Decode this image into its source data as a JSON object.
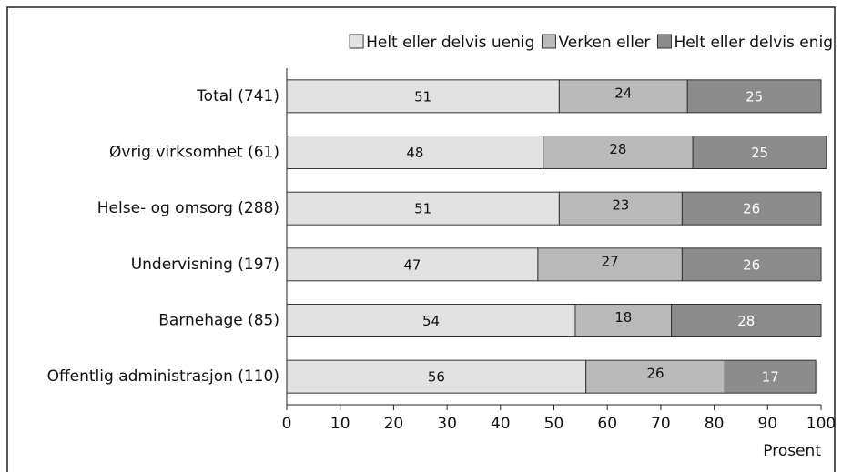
{
  "chart_data": {
    "type": "stacked_barh",
    "categories": [
      "Total (741)",
      "Øvrig virksomhet (61)",
      "Helse- og omsorg (288)",
      "Undervisning (197)",
      "Barnehage (85)",
      "Offentlig administrasjon (110)"
    ],
    "series": [
      {
        "name": "Helt eller delvis uenig",
        "color": "#e2e2e2",
        "values": [
          51,
          48,
          51,
          47,
          54,
          56
        ]
      },
      {
        "name": "Verken eller",
        "color": "#bababa",
        "values": [
          24,
          28,
          23,
          27,
          18,
          26
        ]
      },
      {
        "name": "Helt eller delvis enig",
        "color": "#8c8c8c",
        "values": [
          25,
          25,
          26,
          26,
          28,
          17
        ]
      }
    ],
    "xlim": [
      0,
      100
    ],
    "xticks": [
      0,
      10,
      20,
      30,
      40,
      50,
      60,
      70,
      80,
      90,
      100
    ],
    "x_label": "Prosent",
    "legend": "top-right"
  }
}
